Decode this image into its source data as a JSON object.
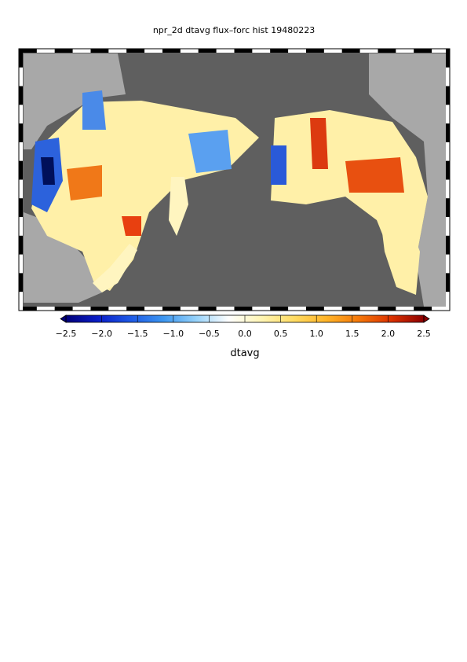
{
  "title": "npr_2d dtavg flux–forc hist 19480223",
  "colorbar": {
    "label": "dtavg",
    "clim": [
      -2.5,
      2.5
    ],
    "colormap": [
      "#00007a",
      "#0a1ec8",
      "#1e5ae6",
      "#3c96f0",
      "#96d2fa",
      "#ffffff",
      "#fff5b4",
      "#ffdc64",
      "#ffb428",
      "#f5780a",
      "#dc3200",
      "#8c0000"
    ],
    "ticks": [
      {
        "value": -2.5,
        "label": "−2.5"
      },
      {
        "value": -2.0,
        "label": "−2.0"
      },
      {
        "value": -1.5,
        "label": "−1.5"
      },
      {
        "value": -1.0,
        "label": "−1.0"
      },
      {
        "value": -0.5,
        "label": "−0.5"
      },
      {
        "value": 0.0,
        "label": "0.0"
      },
      0.5,
      {
        "value": 1.0,
        "label": "1.0"
      },
      1.5,
      {
        "value": 2.0,
        "label": "2.0"
      },
      2.5
    ]
  }
}
